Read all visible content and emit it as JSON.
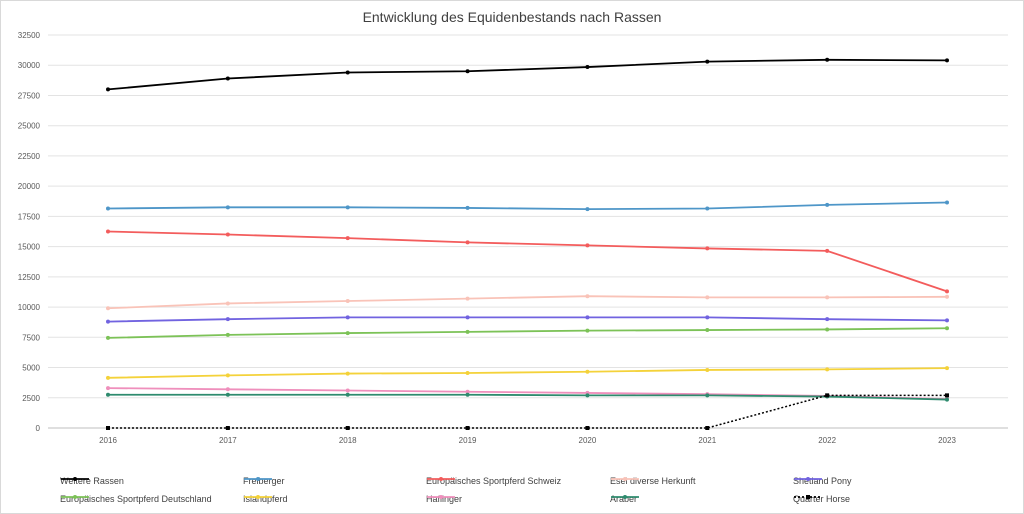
{
  "chart_data": {
    "type": "line",
    "title": "Entwicklung des Equidenbestands nach Rassen",
    "xlabel": "",
    "ylabel": "",
    "x": [
      "2016",
      "2017",
      "2018",
      "2019",
      "2020",
      "2021",
      "2022",
      "2023"
    ],
    "ylim": [
      0,
      32500
    ],
    "yticks": [
      0,
      2500,
      5000,
      7500,
      10000,
      12500,
      15000,
      17500,
      20000,
      22500,
      25000,
      27500,
      30000,
      32500
    ],
    "grid": true,
    "legend_position": "bottom",
    "series": [
      {
        "name": "Weitere Rassen",
        "color": "#000000",
        "values": [
          28000,
          28900,
          29400,
          29500,
          29850,
          30300,
          30450,
          30400
        ]
      },
      {
        "name": "Freiberger",
        "color": "#4e96c8",
        "values": [
          18150,
          18250,
          18250,
          18200,
          18100,
          18150,
          18450,
          18650
        ]
      },
      {
        "name": "Europäisches Sportpferd Schweiz",
        "color": "#f35c5c",
        "values": [
          16250,
          16000,
          15700,
          15350,
          15100,
          14850,
          14650,
          11300
        ]
      },
      {
        "name": "Esel diverse Herkunft",
        "color": "#f9c3b8",
        "values": [
          9900,
          10300,
          10500,
          10700,
          10900,
          10800,
          10800,
          10850
        ]
      },
      {
        "name": "Shetland Pony",
        "color": "#7163e0",
        "values": [
          8800,
          9000,
          9150,
          9150,
          9150,
          9150,
          9000,
          8900
        ]
      },
      {
        "name": "Europäisches Sportpferd Deutschland",
        "color": "#7cc257",
        "values": [
          7450,
          7700,
          7850,
          7950,
          8050,
          8100,
          8150,
          8250
        ]
      },
      {
        "name": "Islandpferd",
        "color": "#f4d23a",
        "values": [
          4150,
          4350,
          4500,
          4550,
          4650,
          4800,
          4850,
          4950
        ]
      },
      {
        "name": "Haflinger",
        "color": "#ef8fbc",
        "values": [
          3300,
          3200,
          3100,
          3000,
          2900,
          2800,
          2650,
          2400
        ]
      },
      {
        "name": "Araber",
        "color": "#2e8b6e",
        "values": [
          2750,
          2750,
          2750,
          2750,
          2700,
          2700,
          2600,
          2350
        ]
      },
      {
        "name": "Quarter Horse",
        "color": "#000000",
        "dashed": true,
        "values": [
          0,
          0,
          0,
          0,
          0,
          0,
          2700,
          2700
        ]
      }
    ]
  }
}
